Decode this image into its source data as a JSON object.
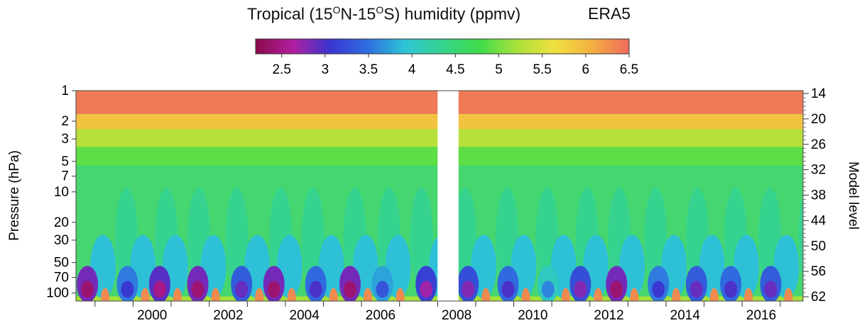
{
  "title": {
    "prefix": "Tropical (15",
    "sup1": "O",
    "mid": "N-15",
    "sup2": "O",
    "suffix": "S) humidity (ppmv)",
    "source": "ERA5"
  },
  "colorbar": {
    "min": 2.2,
    "max": 6.5,
    "ticks": [
      "2.5",
      "3",
      "3.5",
      "4",
      "4.5",
      "5",
      "5.5",
      "6",
      "6.5"
    ],
    "colors": [
      "#8b0a4a",
      "#b020a0",
      "#3a34d0",
      "#2f6fe0",
      "#2ec4d6",
      "#36d38e",
      "#3fdc4a",
      "#a9e03a",
      "#f0e040",
      "#f3b042",
      "#ee6a5c"
    ]
  },
  "chart_data": {
    "type": "heatmap",
    "variable": "Tropical humidity (ppmv)",
    "source": "ERA5",
    "x": {
      "range": [
        1998.5,
        2017.6
      ],
      "ticks": [
        "2000",
        "2002",
        "2004",
        "2006",
        "2008",
        "2010",
        "2012",
        "2014",
        "2016"
      ]
    },
    "y_left": {
      "label": "Pressure (hPa)",
      "scale": "log",
      "range": [
        120,
        1
      ],
      "ticks": [
        "1",
        "2",
        "3",
        "5",
        "7",
        "10",
        "20",
        "30",
        "50",
        "70",
        "100"
      ]
    },
    "y_right": {
      "label": "Model level",
      "ticks": [
        "14",
        "20",
        "26",
        "32",
        "38",
        "44",
        "50",
        "56",
        "62"
      ]
    },
    "data_gap": [
      2008.0,
      2008.55
    ],
    "qualitative_pattern": {
      "upper_levels_1_3hPa": "6-6.5 ppmv",
      "mid_levels_5_50hPa": "4.3-5 ppmv",
      "lower_levels_70_100hPa": "annual cycle, minima ~2.3-3 ppmv",
      "tape_recorder_upward_propagation": true
    },
    "dry_minima_years": [
      1998.8,
      1999.85,
      2000.7,
      2001.7,
      2002.85,
      2003.7,
      2004.8,
      2005.7,
      2006.55,
      2007.7,
      2008.8,
      2009.85,
      2010.9,
      2011.75,
      2012.7,
      2013.8,
      2014.8,
      2015.7,
      2016.75
    ],
    "dry_minima_values": [
      2.4,
      3.1,
      2.5,
      2.4,
      2.9,
      2.4,
      3.0,
      2.4,
      3.3,
      2.7,
      2.8,
      3.0,
      3.6,
      2.8,
      2.4,
      3.1,
      2.9,
      3.0,
      2.9
    ],
    "grid": false
  }
}
